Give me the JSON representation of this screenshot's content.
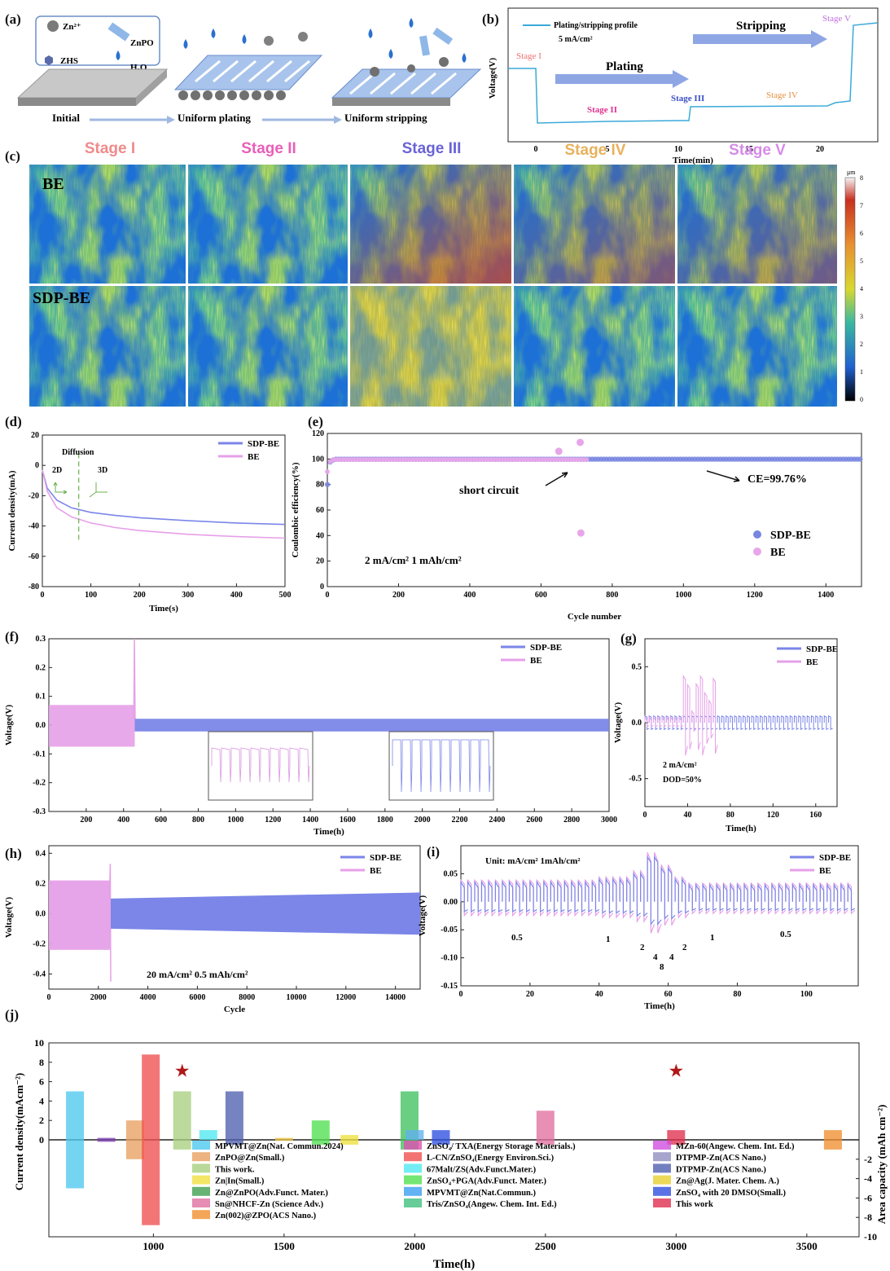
{
  "panels": {
    "a": {
      "label": "(a)",
      "legend": [
        "Zn²⁺",
        "ZnPO",
        "ZHS",
        "H₂O"
      ],
      "steps": [
        "Initial",
        "Uniform plating",
        "Uniform stripping"
      ]
    },
    "b": {
      "label": "(b)",
      "legend": "Plating/stripping profile",
      "current": "5 mA/cm²",
      "ylabel": "Voltage(V)",
      "xlabel": "Time(min)",
      "plating": "Plating",
      "stripping": "Stripping",
      "stages": [
        "Stage I",
        "Stage II",
        "Stage III",
        "Stage IV",
        "Stage V"
      ],
      "xticks": [
        "0",
        "5",
        "10",
        "15",
        "20"
      ]
    },
    "c": {
      "label": "(c)",
      "stages": [
        "Stage I",
        "Stage II",
        "Stage III",
        "Stage IV",
        "Stage V"
      ],
      "stage_colors": [
        "#f08a8a",
        "#e85fb8",
        "#6a63d6",
        "#e8b15c",
        "#d68be8"
      ],
      "rows": [
        "BE",
        "SDP-BE"
      ],
      "colorbar_unit": "μm",
      "colorbar_ticks": [
        "8",
        "7",
        "6",
        "5",
        "4",
        "3",
        "2",
        "1",
        "0"
      ]
    },
    "j_legend": {
      "col1": [
        "MPVMT@Zn(Nat. Commun.2024)",
        "ZnPO@Zn(Small.)",
        "This work.",
        "Zn|In(Small.)",
        "Zn@ZnPO(Adv.Funct. Mater.)",
        "Sn@NHCF-Zn (Science Adv.)",
        "Zn(002)@ZPO(ACS Nano.)"
      ],
      "col2": [
        "ZnSO₄/ TXA(Energy Storage Materials.)",
        "L-CN/ZnSO₄(Energy Environ.Sci.)",
        "67Malt/ZS(Adv.Funct.Mater.)",
        "ZnSO₄+PGA(Adv.Funct. Mater.)",
        "MPVMT@Zn(Nat.Commun.)",
        "Tris/ZnSO₄(Angew. Chem. Int. Ed.)"
      ],
      "col3": [
        "MZn-60(Angew. Chem. Int. Ed.)",
        "DTPMP-Zn(ACS Nano.)",
        "DTPMP-Zn(ACS Nano.)",
        "Zn@Ag(J. Mater. Chem. A.)",
        "ZnSO₄ with 20 DMSO(Small.)",
        "This work"
      ]
    }
  },
  "colors": {
    "sdp": "#7b86e8",
    "be": "#e6a0e8",
    "bg_b": "#ffffff"
  },
  "chart_data": [
    {
      "id": "d",
      "type": "line",
      "label": "(d)",
      "xlabel": "Time(s)",
      "ylabel": "Current density(mA)",
      "annotation": [
        "Diffusion",
        "2D",
        "3D"
      ],
      "xlim": [
        0,
        500
      ],
      "ylim": [
        -80,
        20
      ],
      "xticks": [
        0,
        100,
        200,
        300,
        400,
        500
      ],
      "yticks": [
        20,
        0,
        -20,
        -40,
        -60,
        -80
      ],
      "series": [
        {
          "name": "SDP-BE",
          "x": [
            0,
            10,
            30,
            60,
            100,
            150,
            200,
            300,
            400,
            500
          ],
          "y": [
            -3,
            -15,
            -23,
            -28,
            -31,
            -33,
            -34.5,
            -36.5,
            -38,
            -39
          ]
        },
        {
          "name": "BE",
          "x": [
            0,
            10,
            30,
            60,
            100,
            150,
            200,
            300,
            400,
            500
          ],
          "y": [
            -3,
            -17,
            -28,
            -34,
            -38,
            -41,
            -43,
            -45.5,
            -47,
            -48
          ]
        }
      ]
    },
    {
      "id": "e",
      "type": "scatter",
      "label": "(e)",
      "xlabel": "Cycle number",
      "ylabel": "Coulombic efficiency(%)",
      "xlim": [
        0,
        1500
      ],
      "ylim": [
        0,
        120
      ],
      "xticks": [
        0,
        200,
        400,
        600,
        800,
        1000,
        1200,
        1400
      ],
      "yticks": [
        0,
        20,
        40,
        60,
        80,
        100,
        120
      ],
      "annotations": [
        "short circuit",
        "CE=99.76%",
        "2 mA/cm²   1 mAh/cm²"
      ],
      "series": [
        {
          "name": "SDP-BE",
          "x": [
            0,
            5,
            10,
            20,
            30,
            1500
          ],
          "y": [
            78,
            92,
            98,
            100,
            99.8,
            99.8
          ]
        },
        {
          "name": "BE",
          "x": [
            0,
            10,
            30,
            650,
            710,
            712,
            735
          ],
          "y": [
            88,
            99,
            99.5,
            106,
            113,
            42,
            99.5
          ]
        }
      ]
    },
    {
      "id": "f",
      "type": "line",
      "label": "(f)",
      "xlabel": "Time(h)",
      "ylabel": "Voltage(V)",
      "xlim": [
        0,
        3000
      ],
      "ylim": [
        -0.3,
        0.3
      ],
      "xticks": [
        200,
        400,
        600,
        800,
        1000,
        1200,
        1400,
        1600,
        1800,
        2000,
        2200,
        2400,
        2600,
        2800,
        3000
      ],
      "yticks": [
        0.3,
        0.2,
        0.1,
        0.0,
        -0.1,
        -0.2,
        -0.3
      ],
      "series": [
        {
          "name": "SDP-BE",
          "envelope_x": [
            460,
            3000
          ],
          "amplitude": 0.022
        },
        {
          "name": "BE",
          "envelope_x": [
            0,
            460
          ],
          "amplitude": 0.07
        }
      ]
    },
    {
      "id": "g",
      "type": "line",
      "label": "(g)",
      "xlabel": "Time(h)",
      "ylabel": "Voltage(V)",
      "annotations": [
        "2 mA/cm²",
        "DOD=50%"
      ],
      "xlim": [
        0,
        180
      ],
      "ylim": [
        -0.75,
        0.75
      ],
      "xticks": [
        0,
        40,
        80,
        120,
        160
      ],
      "yticks": [
        0.5,
        0.0,
        -0.5
      ],
      "series": [
        {
          "name": "SDP-BE"
        },
        {
          "name": "BE"
        }
      ]
    },
    {
      "id": "h",
      "type": "line",
      "label": "(h)",
      "xlabel": "Cycle",
      "ylabel": "Voltage(V)",
      "annotations": [
        "20 mA/cm²    0.5 mAh/cm²"
      ],
      "xlim": [
        0,
        15000
      ],
      "ylim": [
        -0.5,
        0.45
      ],
      "xticks": [
        0,
        2000,
        4000,
        6000,
        8000,
        10000,
        12000,
        14000
      ],
      "yticks": [
        0.4,
        0.2,
        0.0,
        -0.2,
        -0.4
      ],
      "series": [
        {
          "name": "SDP-BE",
          "envelope_x": [
            2500,
            15000
          ],
          "amplitude": [
            0.1,
            0.14
          ]
        },
        {
          "name": "BE",
          "envelope_x": [
            0,
            2500
          ],
          "amplitude": 0.22
        }
      ]
    },
    {
      "id": "i",
      "type": "line",
      "label": "(i)",
      "xlabel": "Time(h)",
      "ylabel": "Voltage(V)",
      "annotations": [
        "Unit: mA/cm²  1mAh/cm²"
      ],
      "rate_labels": [
        "0.5",
        "1",
        "2",
        "4",
        "8",
        "4",
        "2",
        "1",
        "0.5"
      ],
      "xlim": [
        0,
        115
      ],
      "ylim": [
        -0.15,
        0.1
      ],
      "xticks": [
        0,
        20,
        40,
        60,
        80,
        100
      ],
      "yticks": [
        0.05,
        0.0,
        -0.05,
        -0.1,
        -0.15
      ],
      "series": [
        {
          "name": "SDP-BE"
        },
        {
          "name": "BE"
        }
      ]
    },
    {
      "id": "j",
      "type": "bar",
      "label": "(j)",
      "xlabel": "Time(h)",
      "ylabel": "Current density(mAcm⁻²)",
      "y2label": "Area capacity (mAh cm⁻²)",
      "xlim": [
        600,
        3700
      ],
      "ylim": [
        -10,
        10
      ],
      "xticks": [
        1000,
        1500,
        2000,
        2500,
        3000,
        3500
      ],
      "yticks": [
        10,
        8,
        6,
        4,
        2,
        0
      ],
      "y2ticks": [
        -2,
        -4,
        -6,
        -8,
        -10
      ],
      "bars": [
        {
          "x": 700,
          "cd": 5,
          "cap": 5,
          "color": "#4fc8f0"
        },
        {
          "x": 820,
          "cd": 0.2,
          "cap": 0.2,
          "color": "#7b3fb0"
        },
        {
          "x": 930,
          "cd": 2,
          "cap": 2,
          "color": "#e8a060"
        },
        {
          "x": 990,
          "cd": 8.8,
          "cap": 8.8,
          "color": "#f05050"
        },
        {
          "x": 1110,
          "cd": 5,
          "cap": 1,
          "color": "#a8d080"
        },
        {
          "x": 1210,
          "cd": 1,
          "cap": 0,
          "color": "#50e8f0"
        },
        {
          "x": 1310,
          "cd": 5,
          "cap": 0.5,
          "color": "#5060b0"
        },
        {
          "x": 1500,
          "cd": 0.2,
          "cap": 0.1,
          "color": "#e8c040"
        },
        {
          "x": 1640,
          "cd": 2,
          "cap": 0.5,
          "color": "#50e050"
        },
        {
          "x": 1750,
          "cd": 0.5,
          "cap": 0.5,
          "color": "#f0e040"
        },
        {
          "x": 1980,
          "cd": 5,
          "cap": 1,
          "color": "#40c060"
        },
        {
          "x": 2000,
          "cd": 1,
          "cap": 0,
          "color": "#60b0f0"
        },
        {
          "x": 2100,
          "cd": 1,
          "cap": 0.5,
          "color": "#3050e0"
        },
        {
          "x": 2500,
          "cd": 3,
          "cap": 0.5,
          "color": "#e070a0"
        },
        {
          "x": 3000,
          "cd": 1,
          "cap": 0.5,
          "color": "#e03050"
        },
        {
          "x": 3600,
          "cd": 1,
          "cap": 1,
          "color": "#f09030"
        }
      ],
      "stars_x": [
        1110,
        3000
      ]
    }
  ]
}
